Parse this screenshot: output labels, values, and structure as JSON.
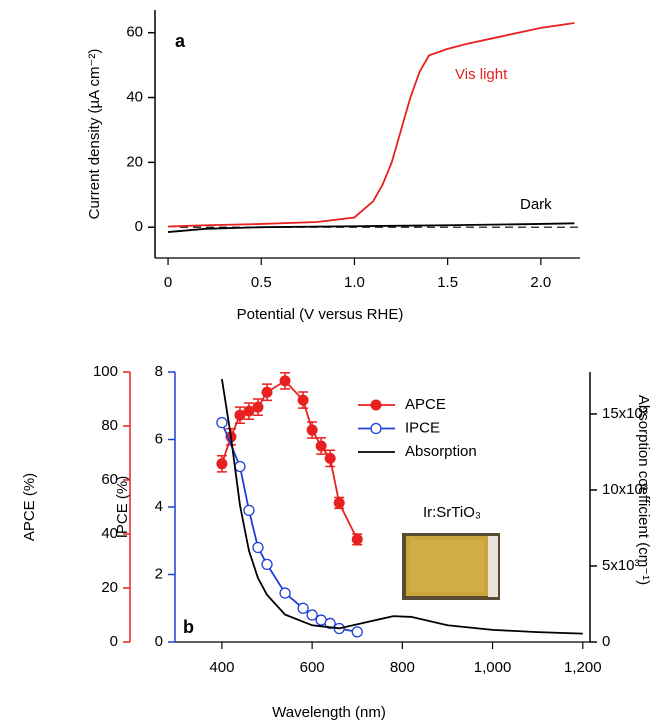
{
  "chart_data": [
    {
      "type": "line",
      "xlabel": "Potential (V versus RHE)",
      "ylabel": "Current density (µA cm⁻²)",
      "annotation": "a",
      "xlim": [
        -0.07,
        2.21
      ],
      "xticks": [
        0,
        0.5,
        {
          "value": 1.0,
          "label": "1.0"
        },
        1.5,
        {
          "value": 2.0,
          "label": "2.0"
        }
      ],
      "ylim": [
        -9.5,
        67
      ],
      "yticks": [
        0,
        20,
        40,
        60
      ],
      "series": [
        {
          "name": "Vis light",
          "color": "#e8201f",
          "x": [
            0,
            0.2,
            0.5,
            0.8,
            1.0,
            1.1,
            1.15,
            1.2,
            1.25,
            1.3,
            1.35,
            1.4,
            1.5,
            1.6,
            1.8,
            2.0,
            2.18
          ],
          "values": [
            0.2,
            0.6,
            1.0,
            1.6,
            3,
            8,
            13,
            20,
            30,
            40,
            48,
            53,
            55,
            56.5,
            59,
            61.5,
            63
          ]
        },
        {
          "name": "Dark",
          "color": "#000000",
          "x": [
            0,
            0.2,
            0.5,
            1.0,
            1.5,
            2.0,
            2.18
          ],
          "values": [
            -1.5,
            -0.5,
            0,
            0.3,
            0.6,
            1.0,
            1.2
          ]
        }
      ]
    },
    {
      "type": "line",
      "xlabel": "Wavelength (nm)",
      "ylabel": "IPCE (%)",
      "y2label": "APCE (%)",
      "y3label": "Absorption coefficient (cm⁻¹)",
      "annotation": "b",
      "inset_label": "Ir:SrTiO₃",
      "xlim": [
        296,
        1216
      ],
      "xticks": [
        400,
        600,
        800,
        {
          "value": 1000,
          "label": "1,000"
        },
        {
          "value": 1200,
          "label": "1,200"
        }
      ],
      "ylim": [
        0,
        8
      ],
      "yticks": [
        0,
        2,
        4,
        6,
        8
      ],
      "y2lim": [
        0,
        100
      ],
      "y2ticks": [
        0,
        20,
        40,
        60,
        80,
        100
      ],
      "y3lim": [
        0,
        17760
      ],
      "y3ticks": [
        0,
        {
          "value": 5000,
          "label": "5x10³"
        },
        {
          "value": 10000,
          "label": "10x10³"
        },
        {
          "value": 15000,
          "label": "15x10³"
        }
      ],
      "series": [
        {
          "name": "APCE",
          "color": "#e8201f",
          "axis": "y2",
          "marker": "filled",
          "x": [
            400,
            420,
            440,
            460,
            480,
            500,
            540,
            580,
            600,
            620,
            640,
            660,
            700
          ],
          "values": [
            66,
            76,
            84,
            85.5,
            87,
            92.5,
            96.7,
            89.6,
            78.5,
            72.6,
            68,
            51.5,
            38
          ],
          "errors": [
            3,
            3,
            3,
            3,
            3,
            3,
            3,
            3,
            3,
            3,
            3,
            2,
            2
          ]
        },
        {
          "name": "IPCE",
          "color": "#1f3fd6",
          "axis": "y",
          "marker": "open",
          "x": [
            400,
            440,
            460,
            480,
            500,
            540,
            580,
            600,
            620,
            640,
            660,
            700
          ],
          "values": [
            6.5,
            5.2,
            3.9,
            2.8,
            2.3,
            1.45,
            1.0,
            0.8,
            0.65,
            0.55,
            0.4,
            0.3
          ]
        },
        {
          "name": "Absorption",
          "color": "#000000",
          "axis": "y3",
          "marker": "none",
          "x": [
            400,
            420,
            440,
            460,
            480,
            500,
            540,
            600,
            660,
            720,
            780,
            820,
            900,
            1000,
            1100,
            1200
          ],
          "values": [
            17300,
            13500,
            9000,
            6000,
            4200,
            3100,
            1800,
            1100,
            900,
            1300,
            1700,
            1650,
            1100,
            800,
            650,
            550
          ]
        }
      ]
    }
  ]
}
